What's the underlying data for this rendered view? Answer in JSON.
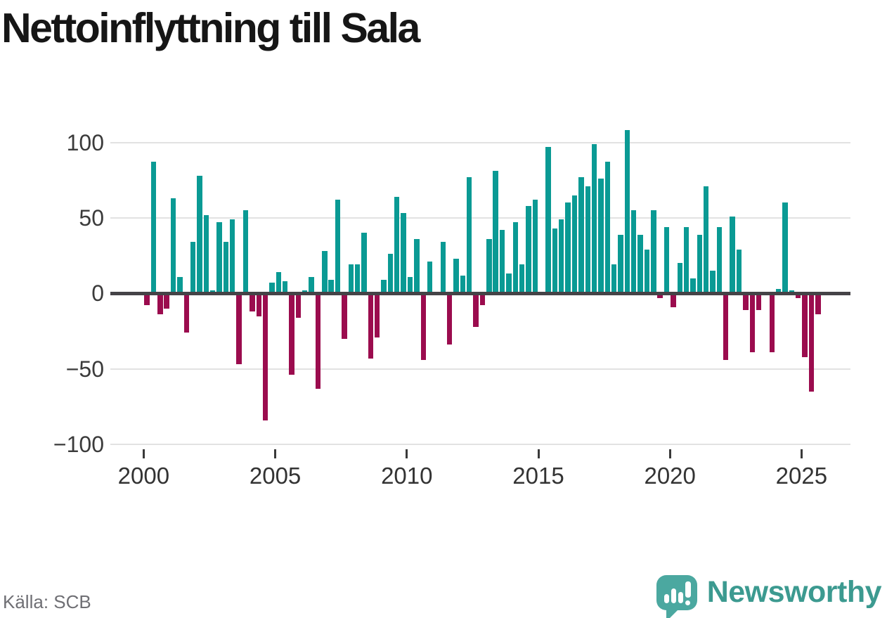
{
  "title": "Nettoinflyttning till Sala",
  "source": "Källa: SCB",
  "branding": {
    "wordmark": "Newsworthy",
    "icon": "speech-bubble-bar-chart"
  },
  "colors": {
    "positive_bar": "#0a9a94",
    "negative_bar": "#9b0c4e",
    "zero_axis": "#454347",
    "gridline": "#e2e2e2",
    "tick_text": "#333333",
    "title_text": "#161616",
    "source_text": "#6f6f74",
    "brand_teal": "#4ba8a0",
    "wordmark_teal": "#3c9a90"
  },
  "chart_data": {
    "type": "bar",
    "title": "Nettoinflyttning till Sala",
    "xlabel": "",
    "ylabel": "",
    "grid": "horizontal",
    "ylim": [
      -100,
      115
    ],
    "y_ticks": [
      100,
      50,
      0,
      -50,
      -100
    ],
    "y_tick_labels": [
      "100",
      "50",
      "0",
      "−50",
      "−100"
    ],
    "x_tick_labels": [
      "2000",
      "2005",
      "2010",
      "2015",
      "2020",
      "2025"
    ],
    "start_year": 2000,
    "period": "quarterly",
    "series_name": "Nettoinflyttning",
    "values": [
      -8,
      87,
      -14,
      -10,
      63,
      11,
      -26,
      34,
      78,
      52,
      2,
      47,
      34,
      49,
      -47,
      55,
      -12,
      -15,
      -84,
      7,
      14,
      8,
      -54,
      -16,
      2,
      11,
      -63,
      28,
      9,
      62,
      -30,
      19,
      19,
      40,
      -43,
      -29,
      9,
      26,
      64,
      53,
      11,
      36,
      -44,
      21,
      0,
      34,
      -34,
      23,
      12,
      77,
      -22,
      -8,
      36,
      81,
      42,
      13,
      47,
      19,
      58,
      62,
      0,
      97,
      43,
      49,
      60,
      65,
      77,
      71,
      99,
      76,
      87,
      19,
      39,
      108,
      55,
      39,
      29,
      55,
      -3,
      44,
      -9,
      20,
      44,
      10,
      39,
      71,
      15,
      44,
      -44,
      51,
      29,
      -11,
      -39,
      -11,
      0,
      -39,
      3,
      60,
      2,
      -3,
      -42,
      -65,
      -14
    ]
  }
}
